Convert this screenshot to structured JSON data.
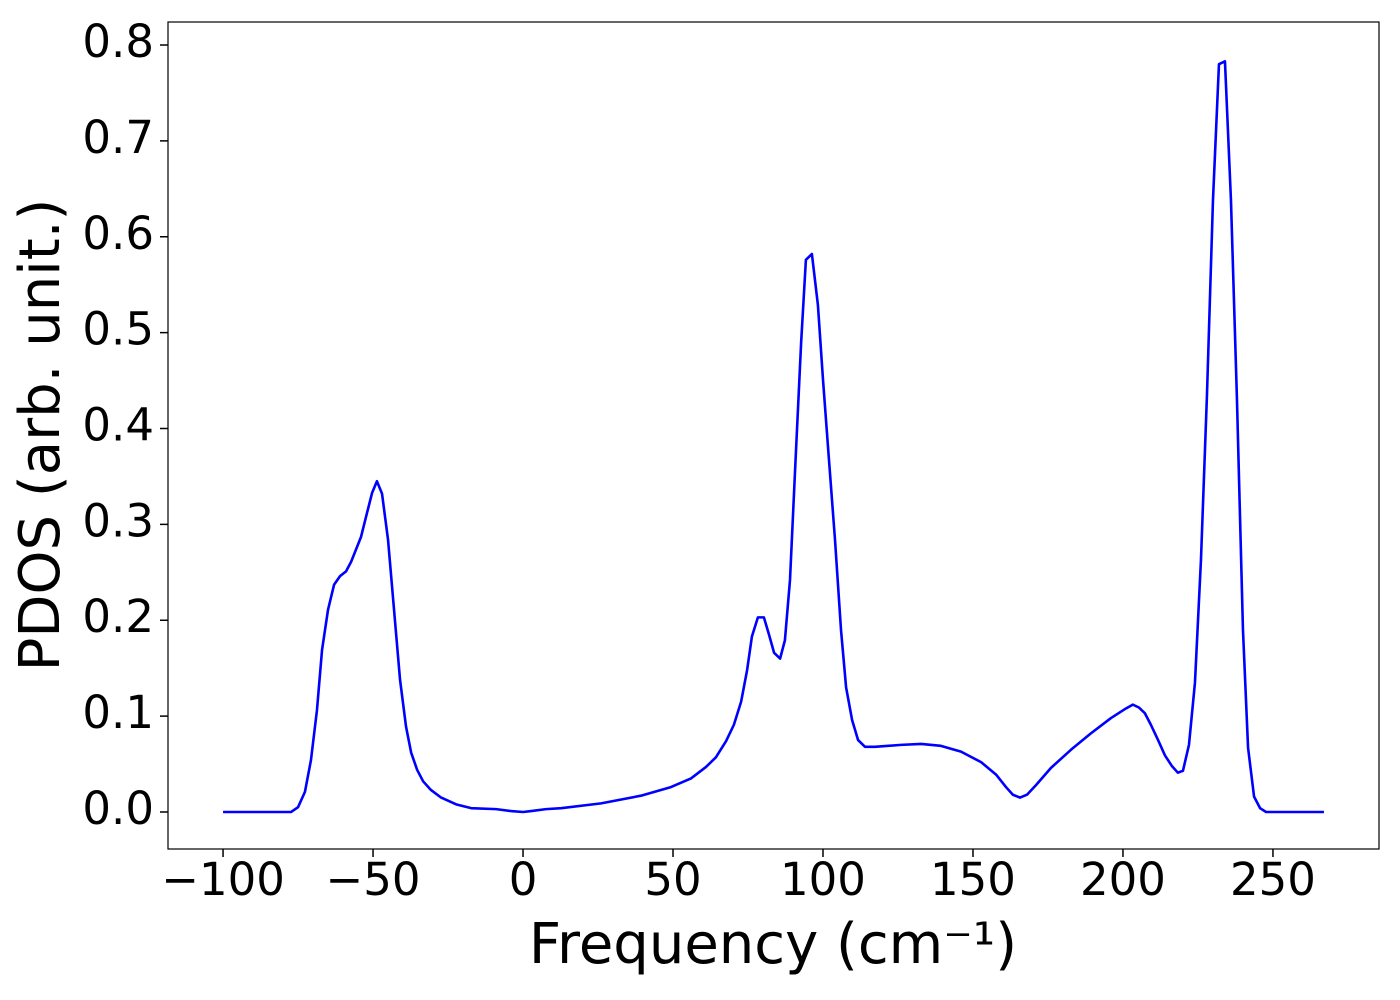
{
  "chart_data": {
    "type": "line",
    "xlabel": "Frequency (cm⁻¹)",
    "ylabel": "PDOS (arb. unit.)",
    "x": [
      -100,
      -77.3,
      -75,
      -72.7,
      -70.7,
      -68.7,
      -67,
      -65,
      -63,
      -61,
      -59,
      -57.3,
      -54,
      -52,
      -50.3,
      -48.7,
      -47,
      -45,
      -43,
      -41,
      -39,
      -37.3,
      -35.3,
      -33.3,
      -30.7,
      -27.3,
      -22.3,
      -17.3,
      -9,
      -4,
      0,
      2.7,
      7.7,
      12.7,
      26,
      39.3,
      49.3,
      56,
      61,
      64.3,
      67.7,
      70.3,
      72.7,
      74.7,
      76.3,
      78.3,
      80.3,
      82,
      83.7,
      85.7,
      87.3,
      89,
      90.7,
      92.7,
      94.3,
      96.3,
      98.3,
      100,
      102,
      104,
      106,
      107.7,
      109.7,
      111.7,
      114,
      117.3,
      126,
      132.7,
      139.3,
      146,
      152.7,
      157.7,
      161,
      163.3,
      165.7,
      168,
      171,
      176,
      182.7,
      189.3,
      196,
      201,
      203.3,
      205.3,
      207.3,
      209.3,
      211.7,
      214,
      216.3,
      218.3,
      220,
      222,
      224,
      226,
      228,
      230,
      232,
      234,
      236,
      238,
      240,
      241.7,
      243.7,
      245.7,
      247.7,
      267
    ],
    "series": [
      {
        "color": "#0000ff",
        "values": [
          0,
          0,
          0.005,
          0.021,
          0.054,
          0.106,
          0.169,
          0.211,
          0.237,
          0.246,
          0.251,
          0.261,
          0.287,
          0.312,
          0.333,
          0.345,
          0.332,
          0.284,
          0.211,
          0.138,
          0.089,
          0.062,
          0.044,
          0.032,
          0.023,
          0.015,
          0.008,
          0.004,
          0.003,
          0.001,
          0,
          0.001,
          0.003,
          0.004,
          0.009,
          0.017,
          0.026,
          0.035,
          0.047,
          0.057,
          0.074,
          0.091,
          0.115,
          0.148,
          0.183,
          0.203,
          0.203,
          0.185,
          0.166,
          0.16,
          0.179,
          0.242,
          0.357,
          0.489,
          0.576,
          0.582,
          0.529,
          0.451,
          0.367,
          0.284,
          0.19,
          0.13,
          0.096,
          0.075,
          0.068,
          0.068,
          0.07,
          0.071,
          0.069,
          0.063,
          0.052,
          0.039,
          0.026,
          0.018,
          0.015,
          0.018,
          0.028,
          0.046,
          0.065,
          0.082,
          0.098,
          0.108,
          0.112,
          0.109,
          0.103,
          0.091,
          0.075,
          0.059,
          0.048,
          0.041,
          0.043,
          0.07,
          0.135,
          0.263,
          0.435,
          0.638,
          0.78,
          0.783,
          0.638,
          0.43,
          0.19,
          0.067,
          0.016,
          0.004,
          0,
          0
        ]
      }
    ],
    "xlim": [
      -118.35,
      285.35
    ],
    "ylim": [
      -0.0386,
      0.824
    ],
    "xticks": [
      {
        "value": -100,
        "label": "−100"
      },
      {
        "value": -50,
        "label": "−50"
      },
      0,
      50,
      100,
      150,
      200,
      250
    ],
    "yticks": [
      {
        "value": 0,
        "label": "0.0"
      },
      0.1,
      0.2,
      0.3,
      0.4,
      0.5,
      0.6,
      0.7,
      0.8
    ],
    "grid": false
  }
}
